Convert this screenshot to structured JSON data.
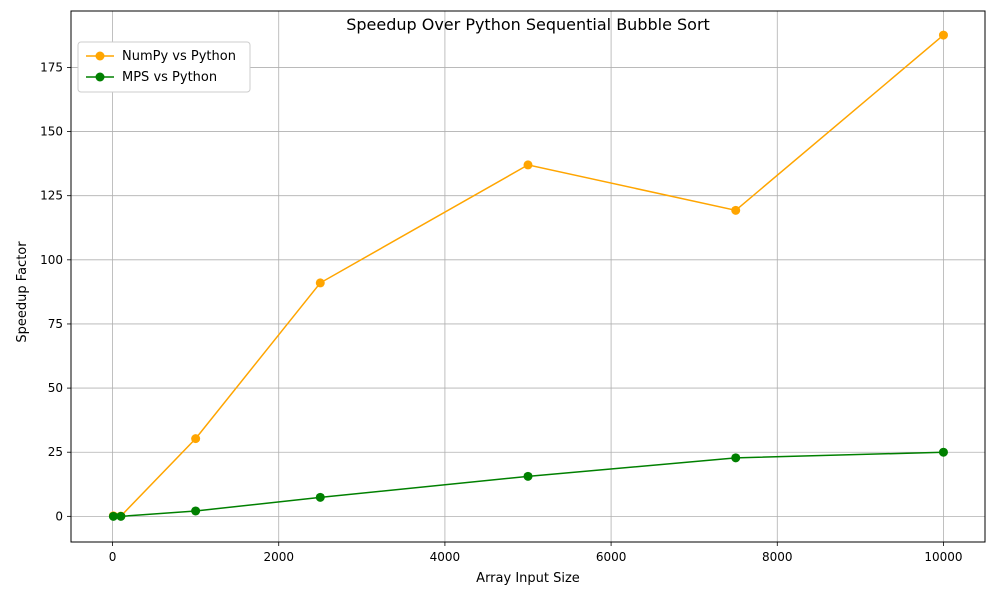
{
  "chart_data": {
    "type": "line",
    "title": "Speedup Over Python Sequential Bubble Sort",
    "xlabel": "Array Input Size",
    "ylabel": "Speedup Factor",
    "xlim": [
      -500,
      10500
    ],
    "ylim": [
      -10,
      197
    ],
    "xticks": [
      0,
      2000,
      4000,
      6000,
      8000,
      10000
    ],
    "yticks": [
      0,
      25,
      50,
      75,
      100,
      125,
      150,
      175
    ],
    "grid": true,
    "legend_position": "top-left",
    "x": [
      10,
      100,
      1000,
      2500,
      5000,
      7500,
      10000
    ],
    "series": [
      {
        "name": "NumPy vs Python",
        "color": "#FFA500",
        "values": [
          0.2,
          0.1,
          30.3,
          91.0,
          137.0,
          119.3,
          187.6
        ]
      },
      {
        "name": "MPS vs Python",
        "color": "#008000",
        "values": [
          0.0,
          0.0,
          2.1,
          7.4,
          15.6,
          22.8,
          25.0
        ]
      }
    ]
  }
}
